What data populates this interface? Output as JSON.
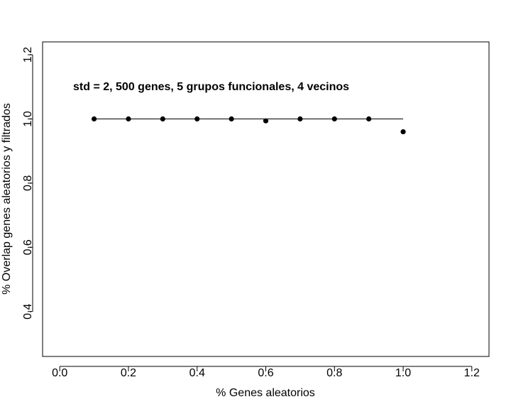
{
  "chart_data": {
    "type": "scatter",
    "annotation": "std = 2, 500 genes, 5 grupos funcionales, 4 vecinos",
    "xlabel": "% Genes aleatorios",
    "ylabel": "% Overlap genes aleatorios y filtrados",
    "xlim": [
      -0.05,
      1.25
    ],
    "ylim": [
      0.26,
      1.24
    ],
    "x_ticks": [
      0.0,
      0.2,
      0.4,
      0.6,
      0.8,
      1.0,
      1.2
    ],
    "x_tick_labels": [
      "0.0",
      "0.2",
      "0.4",
      "0.6",
      "0.8",
      "1.0",
      "1.2"
    ],
    "y_ticks": [
      0.4,
      0.6,
      0.8,
      1.0,
      1.2
    ],
    "y_tick_labels": [
      "0.4",
      "0.6",
      "0.8",
      "1.0",
      "1.2"
    ],
    "grid": false,
    "reference_line": {
      "x": [
        0.1,
        1.0
      ],
      "y": 1.0
    },
    "points": [
      {
        "x": 0.1,
        "y": 1.0
      },
      {
        "x": 0.2,
        "y": 1.0
      },
      {
        "x": 0.3,
        "y": 1.0
      },
      {
        "x": 0.4,
        "y": 1.0
      },
      {
        "x": 0.5,
        "y": 1.0
      },
      {
        "x": 0.6,
        "y": 0.994
      },
      {
        "x": 0.7,
        "y": 1.0
      },
      {
        "x": 0.8,
        "y": 1.0
      },
      {
        "x": 0.9,
        "y": 1.0
      },
      {
        "x": 1.0,
        "y": 0.96
      }
    ],
    "colors": {
      "points": "#000000",
      "axes": "#000000",
      "background": "#ffffff"
    }
  }
}
